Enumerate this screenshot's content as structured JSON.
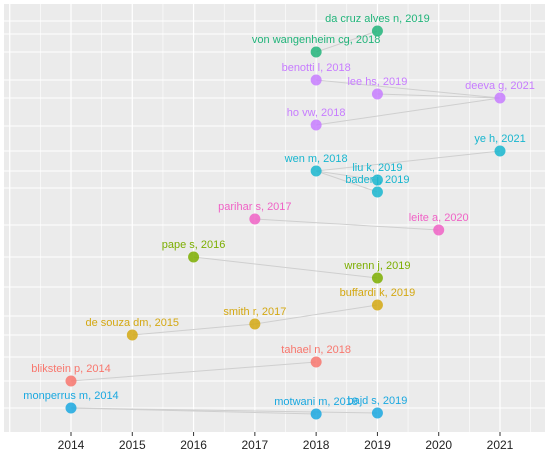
{
  "chart_data": {
    "type": "scatter",
    "title": "",
    "xlabel": "",
    "ylabel": "",
    "xlim": [
      2013.05,
      2021.65
    ],
    "x_ticks": [
      2014,
      2015,
      2016,
      2017,
      2018,
      2019,
      2020,
      2021
    ],
    "grid": true,
    "background": "#ebebeb",
    "grid_color": "#ffffff",
    "link_color": "#cfcfcf",
    "groups": [
      {
        "color": "#21b47a",
        "points": [
          {
            "label": "da cruz alves n, 2019",
            "x": 2019
          },
          {
            "label": "von wangenheim cg, 2018",
            "x": 2018
          }
        ]
      },
      {
        "color": "#c77cff",
        "points": [
          {
            "label": "benotti l, 2018",
            "x": 2018
          },
          {
            "label": "lee hs, 2019",
            "x": 2019
          },
          {
            "label": "deeva g, 2021",
            "x": 2021
          },
          {
            "label": "ho vw, 2018",
            "x": 2018
          }
        ]
      },
      {
        "color": "#17b6cf",
        "points": [
          {
            "label": "ye h, 2021",
            "x": 2021
          },
          {
            "label": "wen m, 2018",
            "x": 2018
          },
          {
            "label": "liu k, 2019",
            "x": 2019
          },
          {
            "label": "bader j, 2019",
            "x": 2019
          }
        ]
      },
      {
        "color": "#f062c6",
        "points": [
          {
            "label": "parihar s, 2017",
            "x": 2017
          },
          {
            "label": "leite a, 2020",
            "x": 2020
          }
        ]
      },
      {
        "color": "#7cae00",
        "points": [
          {
            "label": "pape s, 2016",
            "x": 2016
          },
          {
            "label": "wrenn j, 2019",
            "x": 2019
          }
        ]
      },
      {
        "color": "#d4a812",
        "points": [
          {
            "label": "buffardi k, 2019",
            "x": 2019
          },
          {
            "label": "smith r, 2017",
            "x": 2017
          },
          {
            "label": "de souza dm, 2015",
            "x": 2015
          }
        ]
      },
      {
        "color": "#f8766d",
        "points": [
          {
            "label": "tahael n, 2018",
            "x": 2018
          },
          {
            "label": "blikstein p, 2014",
            "x": 2014
          }
        ]
      },
      {
        "color": "#1aa8e0",
        "points": [
          {
            "label": "monperrus m, 2014",
            "x": 2014
          },
          {
            "label": "motwani m, 2018",
            "x": 2018
          },
          {
            "label": "bajd s, 2019",
            "x": 2019
          }
        ]
      }
    ],
    "links": [
      [
        "da cruz alves n, 2019",
        "von wangenheim cg, 2018"
      ],
      [
        "benotti l, 2018",
        "deeva g, 2021"
      ],
      [
        "lee hs, 2019",
        "deeva g, 2021"
      ],
      [
        "ho vw, 2018",
        "deeva g, 2021"
      ],
      [
        "wen m, 2018",
        "ye h, 2021"
      ],
      [
        "wen m, 2018",
        "liu k, 2019"
      ],
      [
        "wen m, 2018",
        "bader j, 2019"
      ],
      [
        "parihar s, 2017",
        "leite a, 2020"
      ],
      [
        "pape s, 2016",
        "wrenn j, 2019"
      ],
      [
        "buffardi k, 2019",
        "smith r, 2017"
      ],
      [
        "smith r, 2017",
        "de souza dm, 2015"
      ],
      [
        "blikstein p, 2014",
        "tahael n, 2018"
      ],
      [
        "monperrus m, 2014",
        "motwani m, 2018"
      ],
      [
        "monperrus m, 2014",
        "bajd s, 2019"
      ]
    ]
  }
}
